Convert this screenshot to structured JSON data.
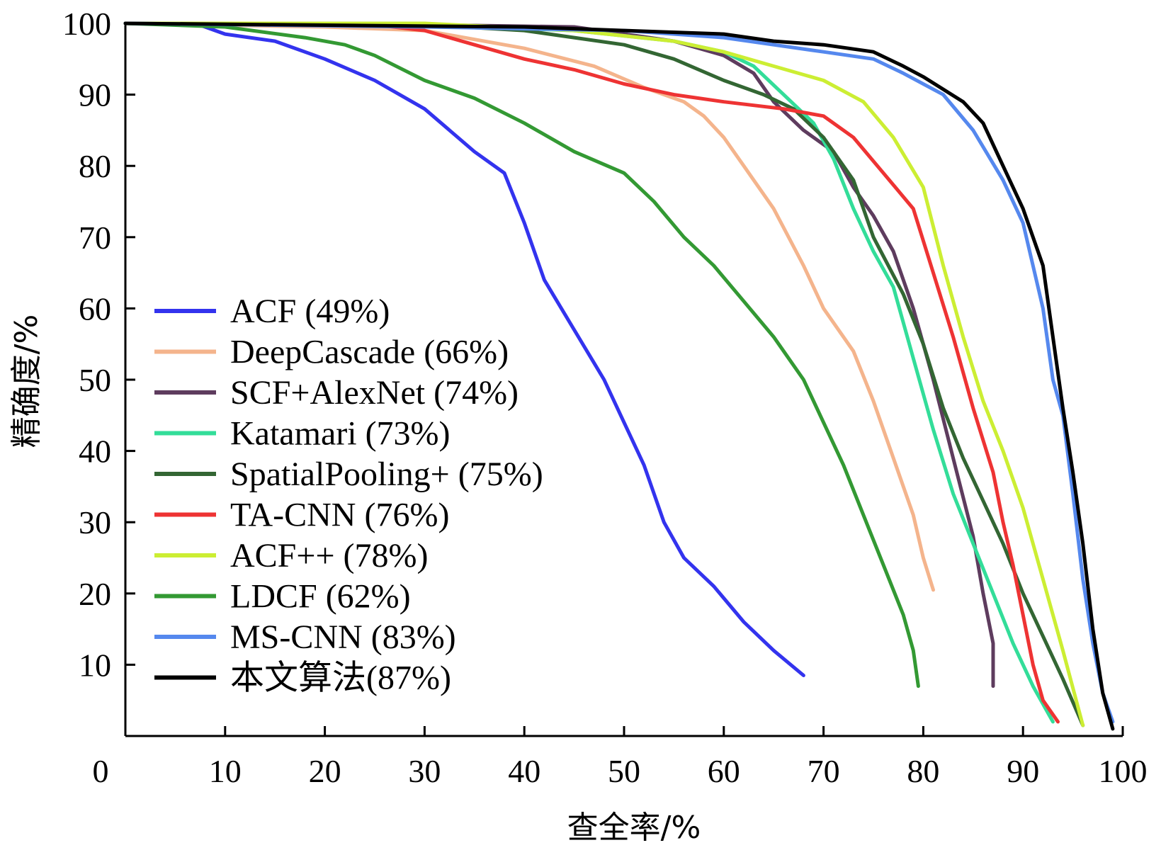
{
  "chart_data": {
    "type": "line",
    "xlabel": "查全率/%",
    "ylabel": "精确度/%",
    "xlim": [
      0,
      100
    ],
    "ylim": [
      0,
      100
    ],
    "x_ticks": [
      0,
      10,
      20,
      30,
      40,
      50,
      60,
      70,
      80,
      90,
      100
    ],
    "y_ticks": [
      10,
      20,
      30,
      40,
      50,
      60,
      70,
      80,
      90,
      100
    ],
    "grid": false,
    "legend_position": "center-left",
    "series": [
      {
        "name": "ACF (49%)",
        "color": "#3333ee",
        "points": [
          [
            0,
            100
          ],
          [
            7,
            100
          ],
          [
            10,
            98.5
          ],
          [
            15,
            97.5
          ],
          [
            20,
            95
          ],
          [
            25,
            92
          ],
          [
            30,
            88
          ],
          [
            35,
            82
          ],
          [
            38,
            79
          ],
          [
            40,
            72
          ],
          [
            42,
            64
          ],
          [
            45,
            57
          ],
          [
            48,
            50
          ],
          [
            50,
            44
          ],
          [
            52,
            38
          ],
          [
            54,
            30
          ],
          [
            56,
            25
          ],
          [
            59,
            21
          ],
          [
            62,
            16
          ],
          [
            65,
            12
          ],
          [
            68,
            8.5
          ]
        ]
      },
      {
        "name": "DeepCascade (66%)",
        "color": "#f4b48c",
        "points": [
          [
            0,
            100
          ],
          [
            20,
            99.5
          ],
          [
            30,
            99
          ],
          [
            40,
            96.5
          ],
          [
            47,
            94
          ],
          [
            52,
            91
          ],
          [
            56,
            89
          ],
          [
            58,
            87
          ],
          [
            60,
            84
          ],
          [
            62,
            80
          ],
          [
            65,
            74
          ],
          [
            68,
            66
          ],
          [
            70,
            60
          ],
          [
            73,
            54
          ],
          [
            75,
            47
          ],
          [
            77,
            39
          ],
          [
            79,
            31
          ],
          [
            80,
            25
          ],
          [
            81,
            20.5
          ]
        ]
      },
      {
        "name": "SCF+AlexNet (74%)",
        "color": "#5e3c5e",
        "points": [
          [
            0,
            100
          ],
          [
            30,
            99.8
          ],
          [
            45,
            99.5
          ],
          [
            55,
            97.5
          ],
          [
            60,
            95.5
          ],
          [
            63,
            93
          ],
          [
            65,
            89
          ],
          [
            68,
            85
          ],
          [
            71,
            82
          ],
          [
            73,
            77
          ],
          [
            75,
            73
          ],
          [
            77,
            68
          ],
          [
            79,
            60
          ],
          [
            81,
            50
          ],
          [
            83,
            39
          ],
          [
            85,
            28
          ],
          [
            86,
            20
          ],
          [
            87,
            13
          ],
          [
            87,
            7
          ]
        ]
      },
      {
        "name": "Katamari (73%)",
        "color": "#33dd99",
        "points": [
          [
            0,
            100
          ],
          [
            30,
            99.8
          ],
          [
            45,
            99
          ],
          [
            55,
            97.5
          ],
          [
            60,
            96
          ],
          [
            63,
            94
          ],
          [
            66,
            90
          ],
          [
            69,
            86
          ],
          [
            71,
            81
          ],
          [
            73,
            74
          ],
          [
            75,
            68
          ],
          [
            77,
            63
          ],
          [
            79,
            53
          ],
          [
            81,
            43
          ],
          [
            83,
            34
          ],
          [
            85,
            27
          ],
          [
            87,
            20
          ],
          [
            89,
            13
          ],
          [
            91,
            7
          ],
          [
            93,
            2
          ]
        ]
      },
      {
        "name": "SpatialPooling+ (75%)",
        "color": "#336633",
        "points": [
          [
            0,
            100
          ],
          [
            30,
            99.8
          ],
          [
            40,
            99
          ],
          [
            45,
            98
          ],
          [
            50,
            97
          ],
          [
            55,
            95
          ],
          [
            60,
            92
          ],
          [
            64,
            90
          ],
          [
            67,
            88
          ],
          [
            70,
            84
          ],
          [
            73,
            78
          ],
          [
            75,
            70
          ],
          [
            78,
            62
          ],
          [
            80,
            55
          ],
          [
            82,
            46
          ],
          [
            84,
            39
          ],
          [
            86,
            33
          ],
          [
            88,
            27
          ],
          [
            90,
            20
          ],
          [
            92,
            14
          ],
          [
            94,
            8
          ],
          [
            96,
            1.5
          ]
        ]
      },
      {
        "name": "TA-CNN (76%)",
        "color": "#ee3333",
        "points": [
          [
            0,
            100
          ],
          [
            25,
            99.8
          ],
          [
            30,
            99
          ],
          [
            35,
            97
          ],
          [
            40,
            95
          ],
          [
            45,
            93.5
          ],
          [
            50,
            91.5
          ],
          [
            55,
            90
          ],
          [
            60,
            89
          ],
          [
            63,
            88.5
          ],
          [
            66,
            88
          ],
          [
            70,
            87
          ],
          [
            73,
            84
          ],
          [
            76,
            79
          ],
          [
            79,
            74
          ],
          [
            81,
            65
          ],
          [
            83,
            56
          ],
          [
            85,
            46
          ],
          [
            87,
            37
          ],
          [
            88,
            30
          ],
          [
            89,
            24
          ],
          [
            90,
            17
          ],
          [
            91,
            10
          ],
          [
            92,
            5
          ],
          [
            93.5,
            2
          ]
        ]
      },
      {
        "name": "ACF++ (78%)",
        "color": "#ccee33",
        "points": [
          [
            0,
            100
          ],
          [
            30,
            100
          ],
          [
            45,
            99
          ],
          [
            55,
            97.5
          ],
          [
            60,
            96
          ],
          [
            65,
            94
          ],
          [
            70,
            92
          ],
          [
            74,
            89
          ],
          [
            77,
            84
          ],
          [
            80,
            77
          ],
          [
            82,
            66
          ],
          [
            84,
            56
          ],
          [
            86,
            47
          ],
          [
            88,
            40
          ],
          [
            90,
            32
          ],
          [
            92,
            22
          ],
          [
            94,
            12
          ],
          [
            96,
            1.5
          ]
        ]
      },
      {
        "name": "LDCF (62%)",
        "color": "#339933",
        "points": [
          [
            0,
            100
          ],
          [
            10,
            99.5
          ],
          [
            18,
            98
          ],
          [
            22,
            97
          ],
          [
            25,
            95.5
          ],
          [
            30,
            92
          ],
          [
            35,
            89.5
          ],
          [
            40,
            86
          ],
          [
            45,
            82
          ],
          [
            50,
            79
          ],
          [
            53,
            75
          ],
          [
            56,
            70
          ],
          [
            59,
            66
          ],
          [
            62,
            61
          ],
          [
            65,
            56
          ],
          [
            68,
            50
          ],
          [
            70,
            44
          ],
          [
            72,
            38
          ],
          [
            74,
            31
          ],
          [
            76,
            24
          ],
          [
            78,
            17
          ],
          [
            79,
            12
          ],
          [
            79.5,
            7
          ]
        ]
      },
      {
        "name": "MS-CNN (83%)",
        "color": "#5588ee",
        "points": [
          [
            0,
            100
          ],
          [
            30,
            99.5
          ],
          [
            50,
            99
          ],
          [
            60,
            98
          ],
          [
            65,
            97
          ],
          [
            70,
            96
          ],
          [
            75,
            95
          ],
          [
            78,
            93
          ],
          [
            82,
            90
          ],
          [
            85,
            85
          ],
          [
            88,
            78
          ],
          [
            90,
            72
          ],
          [
            92,
            60
          ],
          [
            93,
            50
          ],
          [
            94,
            45
          ],
          [
            95,
            34
          ],
          [
            96,
            22
          ],
          [
            97,
            13
          ],
          [
            98,
            6
          ],
          [
            99,
            2
          ]
        ]
      },
      {
        "name": "本文算法(87%)",
        "color": "#000000",
        "points": [
          [
            0,
            100
          ],
          [
            40,
            99.5
          ],
          [
            50,
            99
          ],
          [
            60,
            98.5
          ],
          [
            65,
            97.5
          ],
          [
            70,
            97
          ],
          [
            75,
            96
          ],
          [
            78,
            94
          ],
          [
            80,
            92.5
          ],
          [
            84,
            89
          ],
          [
            86,
            86
          ],
          [
            88,
            80
          ],
          [
            90,
            74
          ],
          [
            92,
            66
          ],
          [
            93,
            56
          ],
          [
            94,
            46
          ],
          [
            95,
            37
          ],
          [
            96,
            27
          ],
          [
            97,
            15
          ],
          [
            98,
            6
          ],
          [
            99,
            1
          ]
        ]
      }
    ]
  }
}
